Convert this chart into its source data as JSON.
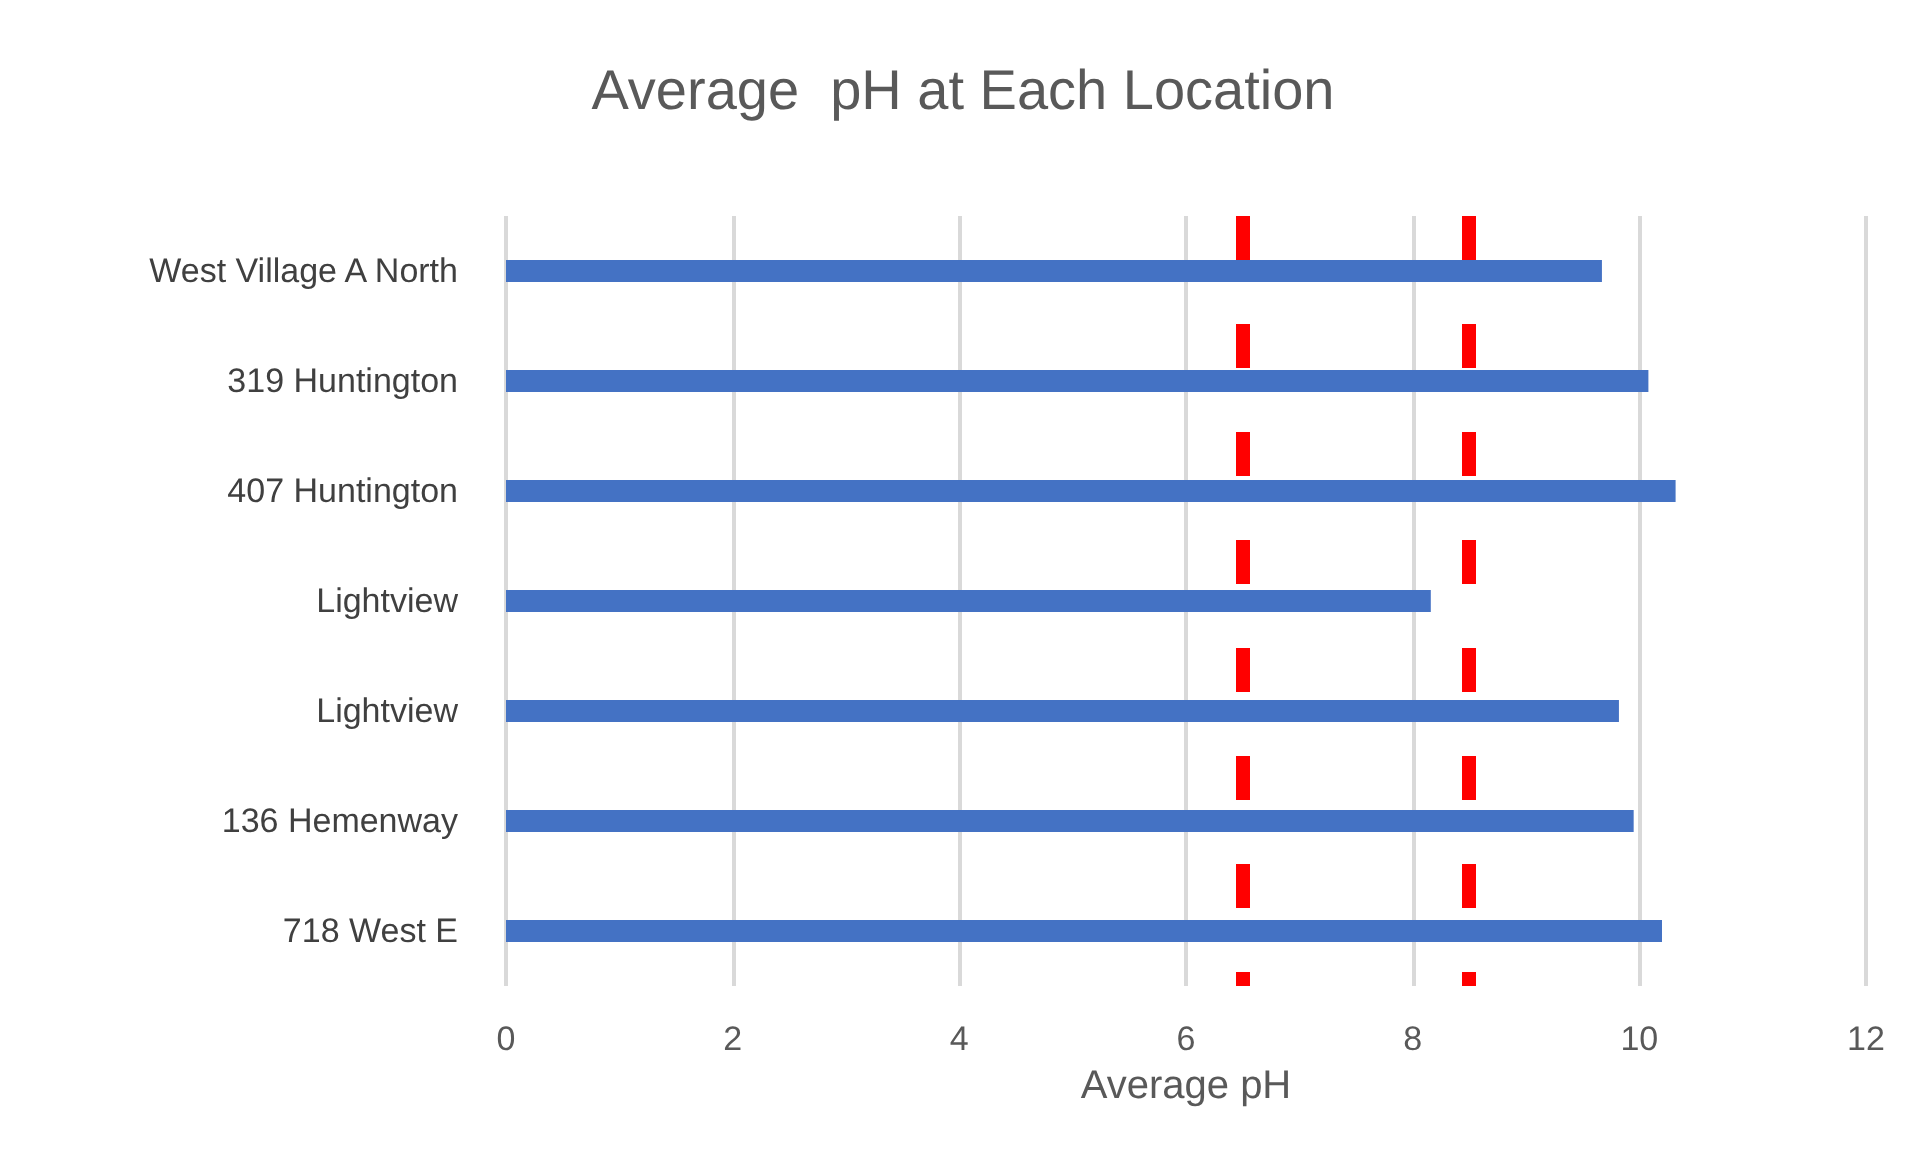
{
  "chart_data": {
    "type": "bar",
    "orientation": "horizontal",
    "title": "Average  pH at Each Location",
    "xlabel": "Average pH",
    "categories": [
      "West Village A North",
      "319 Huntington",
      "407 Huntington",
      "Lightview",
      "Lightview",
      "136 Hemenway",
      "718 West E"
    ],
    "values": [
      9.67,
      10.08,
      10.32,
      8.16,
      9.82,
      9.95,
      10.2
    ],
    "color": "#4472c4",
    "xlim": [
      0,
      12
    ],
    "xticks": [
      0,
      2,
      4,
      6,
      8,
      10,
      12
    ],
    "grid": "x",
    "ref_lines": [
      {
        "axis": "x",
        "value": 6.5,
        "color": "#ff0000",
        "line_style": "dashed"
      },
      {
        "axis": "x",
        "value": 8.5,
        "color": "#ff0000",
        "line_style": "dashed"
      }
    ]
  }
}
